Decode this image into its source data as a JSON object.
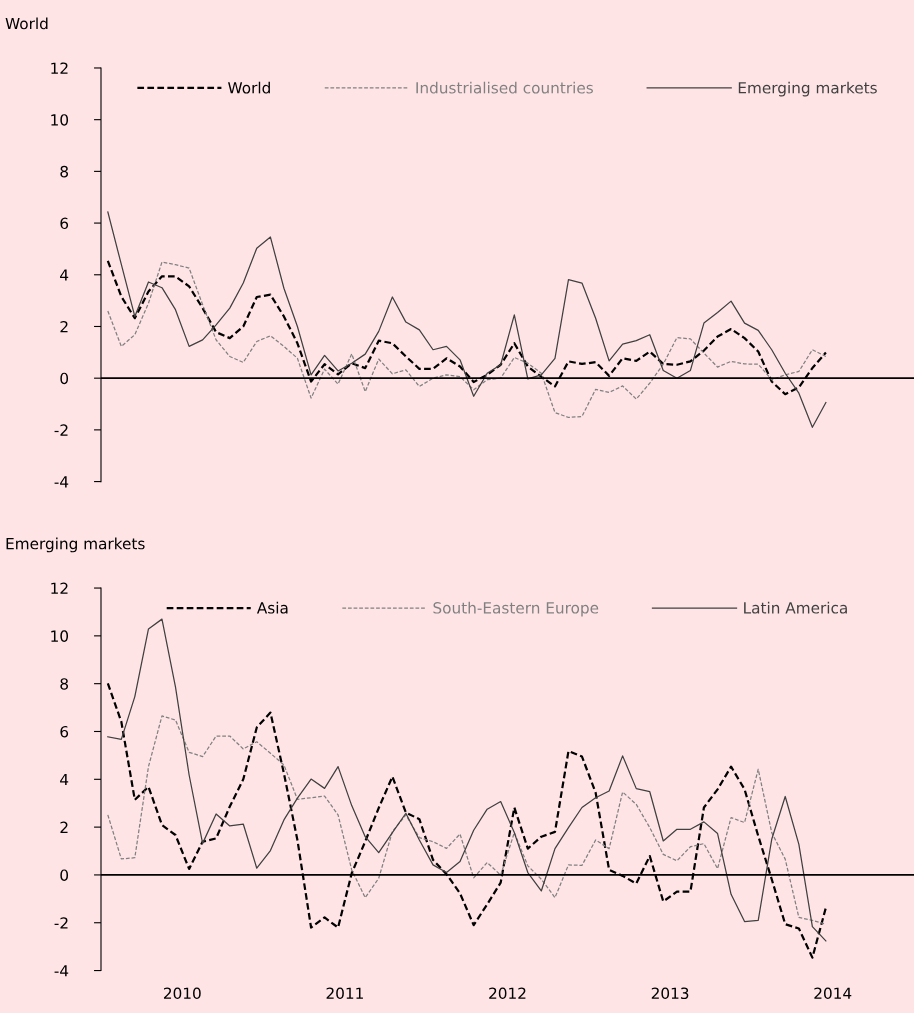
{
  "chart_data": [
    {
      "type": "line",
      "title": "World",
      "legend": "top",
      "tick_labels": "y",
      "grid": false,
      "x": [
        2010.042,
        2010.125,
        2010.208,
        2010.292,
        2010.375,
        2010.458,
        2010.542,
        2010.625,
        2010.708,
        2010.792,
        2010.875,
        2010.958,
        2011.042,
        2011.125,
        2011.208,
        2011.292,
        2011.375,
        2011.458,
        2011.542,
        2011.625,
        2011.708,
        2011.792,
        2011.875,
        2011.958,
        2012.042,
        2012.125,
        2012.208,
        2012.292,
        2012.375,
        2012.458,
        2012.542,
        2012.625,
        2012.708,
        2012.792,
        2012.875,
        2012.958,
        2013.042,
        2013.125,
        2013.208,
        2013.292,
        2013.375,
        2013.458,
        2013.542,
        2013.625,
        2013.708,
        2013.792,
        2013.875,
        2013.958,
        2014.042,
        2014.125,
        2014.208,
        2014.292,
        2014.375,
        2014.458
      ],
      "xlim": [
        2010,
        2015
      ],
      "ylim": [
        -4,
        12
      ],
      "yticks": [
        -4,
        -2,
        0,
        2,
        4,
        6,
        8,
        10,
        12
      ],
      "ref_lines": [
        {
          "axis": "y",
          "value": 0,
          "color": "#000000"
        }
      ],
      "series": [
        {
          "name": "World",
          "color": "#000000",
          "line_style": "dashed",
          "values": [
            4.54,
            3.16,
            2.32,
            3.35,
            3.94,
            3.94,
            3.55,
            2.71,
            1.78,
            1.55,
            2.0,
            3.14,
            3.23,
            2.39,
            1.35,
            -0.13,
            0.54,
            0.15,
            0.58,
            0.39,
            1.45,
            1.35,
            0.84,
            0.36,
            0.36,
            0.77,
            0.45,
            -0.15,
            0.13,
            0.52,
            1.35,
            0.45,
            0.06,
            -0.32,
            0.65,
            0.55,
            0.62,
            0.09,
            0.77,
            0.67,
            1.03,
            0.55,
            0.52,
            0.65,
            1.07,
            1.61,
            1.9,
            1.55,
            1.03,
            -0.13,
            -0.62,
            -0.36,
            0.39,
            0.99
          ]
        },
        {
          "name": "Industrialised countries",
          "color": "#808080",
          "line_style": "dashed",
          "values": [
            2.6,
            1.23,
            1.68,
            2.9,
            4.49,
            4.39,
            4.26,
            2.84,
            1.48,
            0.84,
            0.61,
            1.42,
            1.64,
            1.23,
            0.77,
            -0.77,
            0.35,
            -0.23,
            0.94,
            -0.52,
            0.74,
            0.17,
            0.32,
            -0.32,
            0.0,
            0.13,
            0.06,
            -0.45,
            -0.06,
            0.0,
            0.8,
            0.58,
            0.19,
            -1.33,
            -1.52,
            -1.48,
            -0.43,
            -0.55,
            -0.3,
            -0.81,
            -0.19,
            0.54,
            1.57,
            1.52,
            0.97,
            0.43,
            0.65,
            0.55,
            0.54,
            -0.06,
            0.13,
            0.26,
            1.1,
            0.84
          ]
        },
        {
          "name": "Emerging markets",
          "color": "#404040",
          "line_style": "solid",
          "values": [
            6.43,
            4.4,
            2.39,
            3.72,
            3.5,
            2.65,
            1.23,
            1.48,
            2.06,
            2.71,
            3.68,
            5.03,
            5.46,
            3.48,
            2.0,
            0.13,
            0.88,
            0.28,
            0.58,
            0.93,
            1.81,
            3.14,
            2.17,
            1.87,
            1.1,
            1.23,
            0.71,
            -0.7,
            0.19,
            0.52,
            2.45,
            -0.03,
            0.13,
            0.77,
            3.81,
            3.68,
            2.32,
            0.67,
            1.32,
            1.45,
            1.68,
            0.3,
            0.0,
            0.3,
            2.13,
            2.54,
            2.98,
            2.13,
            1.85,
            1.1,
            0.19,
            -0.58,
            -1.9,
            -0.94
          ]
        }
      ]
    },
    {
      "type": "line",
      "title": "Emerging markets",
      "legend": "top",
      "grid": false,
      "x": [
        2010.042,
        2010.125,
        2010.208,
        2010.292,
        2010.375,
        2010.458,
        2010.542,
        2010.625,
        2010.708,
        2010.792,
        2010.875,
        2010.958,
        2011.042,
        2011.125,
        2011.208,
        2011.292,
        2011.375,
        2011.458,
        2011.542,
        2011.625,
        2011.708,
        2011.792,
        2011.875,
        2011.958,
        2012.042,
        2012.125,
        2012.208,
        2012.292,
        2012.375,
        2012.458,
        2012.542,
        2012.625,
        2012.708,
        2012.792,
        2012.875,
        2012.958,
        2013.042,
        2013.125,
        2013.208,
        2013.292,
        2013.375,
        2013.458,
        2013.542,
        2013.625,
        2013.708,
        2013.792,
        2013.875,
        2013.958,
        2014.042,
        2014.125,
        2014.208,
        2014.292,
        2014.375,
        2014.458
      ],
      "xlim": [
        2010,
        2015
      ],
      "xticks": [
        {
          "value": 2010.5,
          "label": "2010"
        },
        {
          "value": 2011.5,
          "label": "2011"
        },
        {
          "value": 2012.5,
          "label": "2012"
        },
        {
          "value": 2013.5,
          "label": "2013"
        },
        {
          "value": 2014.5,
          "label": "2014"
        }
      ],
      "ylim": [
        -4,
        12
      ],
      "yticks": [
        -4,
        -2,
        0,
        2,
        4,
        6,
        8,
        10,
        12
      ],
      "ref_lines": [
        {
          "axis": "y",
          "value": 0,
          "color": "#000000"
        }
      ],
      "series": [
        {
          "name": "Asia",
          "color": "#000000",
          "line_style": "dashed",
          "values": [
            8.01,
            6.41,
            3.14,
            3.69,
            2.09,
            1.67,
            0.25,
            1.39,
            1.53,
            2.86,
            4.0,
            6.17,
            6.79,
            4.25,
            1.46,
            -2.2,
            -1.78,
            -2.2,
            0.07,
            1.4,
            2.8,
            4.11,
            2.61,
            2.33,
            0.63,
            0.03,
            -0.77,
            -2.1,
            -1.23,
            -0.32,
            2.82,
            1.1,
            1.6,
            1.8,
            5.18,
            4.95,
            3.44,
            0.21,
            -0.04,
            -0.36,
            0.79,
            -1.11,
            -0.7,
            -0.7,
            2.82,
            3.58,
            4.53,
            3.58,
            1.63,
            -0.18,
            -2.06,
            -2.24,
            -3.46,
            -1.37
          ]
        },
        {
          "name": "South-Eastern Europe",
          "color": "#808080",
          "line_style": "dashed",
          "values": [
            2.51,
            0.67,
            0.72,
            4.53,
            6.65,
            6.48,
            5.13,
            4.95,
            5.81,
            5.81,
            5.27,
            5.57,
            5.09,
            4.6,
            3.16,
            3.23,
            3.3,
            2.51,
            0.21,
            -0.95,
            -0.14,
            1.81,
            2.51,
            1.56,
            1.39,
            1.11,
            1.71,
            -0.12,
            0.52,
            -0.01,
            1.77,
            0.38,
            -0.18,
            -0.95,
            0.42,
            0.4,
            1.46,
            1.1,
            3.47,
            2.95,
            1.98,
            0.86,
            0.59,
            1.18,
            1.31,
            0.26,
            2.4,
            2.19,
            4.42,
            1.77,
            0.66,
            -1.78,
            -1.9,
            -2.06
          ]
        },
        {
          "name": "Latin America",
          "color": "#404040",
          "line_style": "solid",
          "values": [
            5.78,
            5.67,
            7.46,
            10.29,
            10.7,
            7.87,
            4.18,
            1.32,
            2.55,
            2.05,
            2.13,
            0.28,
            1.02,
            2.3,
            3.21,
            4.01,
            3.62,
            4.53,
            2.9,
            1.6,
            0.93,
            1.77,
            2.58,
            1.46,
            0.42,
            0.1,
            0.56,
            1.87,
            2.75,
            3.07,
            1.77,
            0.1,
            -0.67,
            1.1,
            1.98,
            2.82,
            3.23,
            3.51,
            4.98,
            3.61,
            3.48,
            1.42,
            1.91,
            1.91,
            2.22,
            1.73,
            -0.81,
            -1.95,
            -1.9,
            1.49,
            3.28,
            1.28,
            -2.16,
            -2.76
          ]
        }
      ]
    }
  ]
}
